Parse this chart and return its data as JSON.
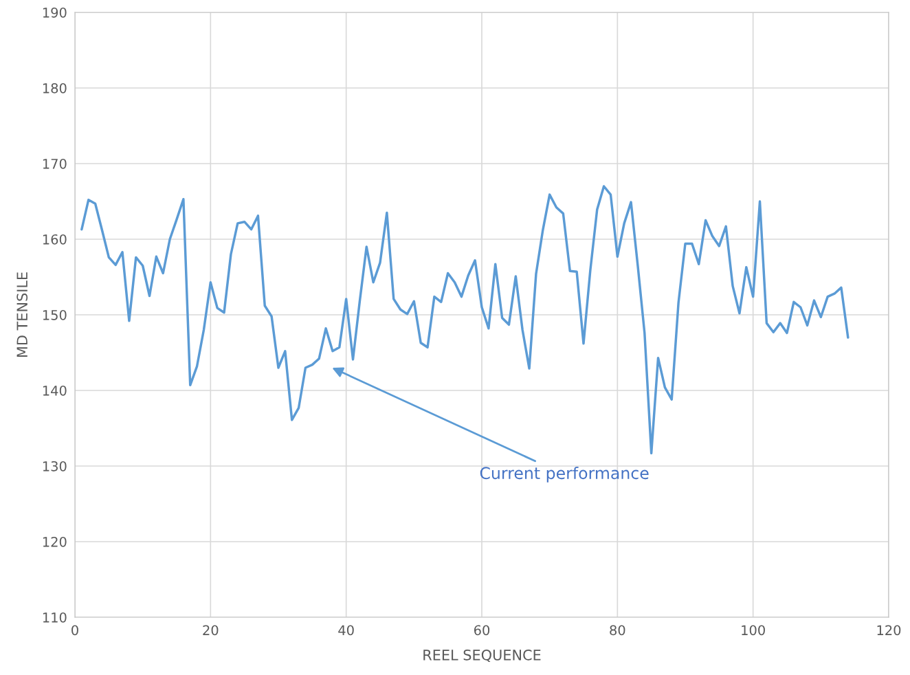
{
  "chart_data": {
    "type": "line",
    "xlabel": "REEL SEQUENCE",
    "ylabel": "MD TENSILE",
    "x": [
      1,
      2,
      3,
      4,
      5,
      6,
      7,
      8,
      9,
      10,
      11,
      12,
      13,
      14,
      15,
      16,
      17,
      18,
      19,
      20,
      21,
      22,
      23,
      24,
      25,
      26,
      27,
      28,
      29,
      30,
      31,
      32,
      33,
      34,
      35,
      36,
      37,
      38,
      39,
      40,
      41,
      42,
      43,
      44,
      45,
      46,
      47,
      48,
      49,
      50,
      51,
      52,
      53,
      54,
      55,
      56,
      57,
      58,
      59,
      60,
      61,
      62,
      63,
      64,
      65,
      66,
      67,
      68,
      69,
      70,
      71,
      72,
      73,
      74,
      75,
      76,
      77,
      78,
      79,
      80,
      81,
      82,
      83,
      84,
      85,
      86,
      87,
      88,
      89,
      90,
      91,
      92,
      93,
      94,
      95,
      96,
      97,
      98,
      99,
      100,
      101,
      102,
      103,
      104,
      105,
      106,
      107,
      108,
      109,
      110,
      111,
      112,
      113,
      114
    ],
    "series": [
      {
        "color": "#5b9bd5",
        "values": [
          161.3,
          165.2,
          164.7,
          161.2,
          157.6,
          156.6,
          158.3,
          149.2,
          157.6,
          156.5,
          152.5,
          157.7,
          155.5,
          160.0,
          162.6,
          165.3,
          140.7,
          143.2,
          148.0,
          154.3,
          150.9,
          150.3,
          158.0,
          162.1,
          162.3,
          161.3,
          163.1,
          151.2,
          149.8,
          143.0,
          145.2,
          136.1,
          137.7,
          143.0,
          143.4,
          144.2,
          148.2,
          145.2,
          145.7,
          152.1,
          144.1,
          151.8,
          159.0,
          154.3,
          156.9,
          163.5,
          152.1,
          150.7,
          150.1,
          151.8,
          146.3,
          145.7,
          152.4,
          151.7,
          155.5,
          154.3,
          152.4,
          155.2,
          157.2,
          151.0,
          148.2,
          156.7,
          149.6,
          148.7,
          155.1,
          148.0,
          142.9,
          155.4,
          161.2,
          165.9,
          164.2,
          163.4,
          155.8,
          155.7,
          146.2,
          155.9,
          163.9,
          167.0,
          165.9,
          157.7,
          162.1,
          164.9,
          156.5,
          147.6,
          131.7,
          144.3,
          140.4,
          138.8,
          151.6,
          159.4,
          159.4,
          156.7,
          162.5,
          160.4,
          159.1,
          161.7,
          153.8,
          150.2,
          156.3,
          152.4,
          165.0,
          148.9,
          147.7,
          148.9,
          147.6,
          151.7,
          151.0,
          148.6,
          151.9,
          149.7,
          152.4,
          152.8,
          153.6,
          147.0
        ]
      }
    ],
    "xlim": [
      0,
      120
    ],
    "xticks": [
      0,
      20,
      40,
      60,
      80,
      100,
      120
    ],
    "ylim": [
      110,
      190
    ],
    "yticks": [
      110,
      120,
      130,
      140,
      150,
      160,
      170,
      180,
      190
    ],
    "grid": true,
    "marker": "none",
    "line_style": "solid",
    "annotations": [
      "Current performance"
    ]
  }
}
